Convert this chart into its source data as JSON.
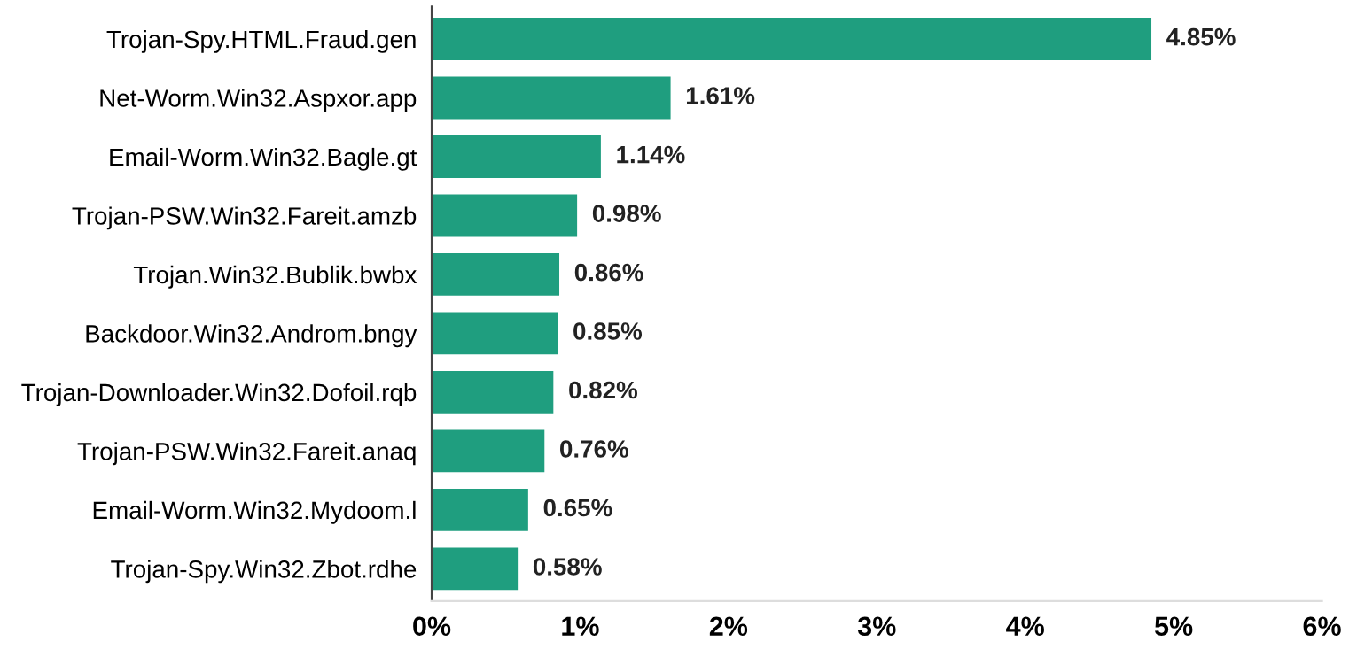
{
  "chart_data": {
    "type": "bar",
    "orientation": "horizontal",
    "categories": [
      "Trojan-Spy.HTML.Fraud.gen",
      "Net-Worm.Win32.Aspxor.app",
      "Email-Worm.Win32.Bagle.gt",
      "Trojan-PSW.Win32.Fareit.amzb",
      "Trojan.Win32.Bublik.bwbx",
      "Backdoor.Win32.Androm.bngy",
      "Trojan-Downloader.Win32.Dofoil.rqb",
      "Trojan-PSW.Win32.Fareit.anaq",
      "Email-Worm.Win32.Mydoom.l",
      "Trojan-Spy.Win32.Zbot.rdhe"
    ],
    "values": [
      4.85,
      1.61,
      1.14,
      0.98,
      0.86,
      0.85,
      0.82,
      0.76,
      0.65,
      0.58
    ],
    "value_labels": [
      "4.85%",
      "1.61%",
      "1.14%",
      "0.98%",
      "0.86%",
      "0.85%",
      "0.82%",
      "0.76%",
      "0.65%",
      "0.58%"
    ],
    "color": "#1f9e7f",
    "xlim": [
      0,
      6
    ],
    "xticks": [
      {
        "value": 0,
        "label": "0%"
      },
      {
        "value": 1,
        "label": "1%"
      },
      {
        "value": 2,
        "label": "2%"
      },
      {
        "value": 3,
        "label": "3%"
      },
      {
        "value": 4,
        "label": "4%"
      },
      {
        "value": 5,
        "label": "5%"
      },
      {
        "value": 6,
        "label": "6%"
      }
    ],
    "grid": false
  }
}
